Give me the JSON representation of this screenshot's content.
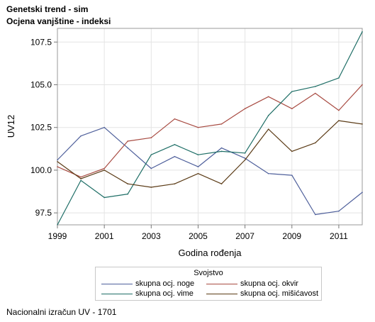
{
  "title_line1": "Genetski trend - sim",
  "title_line2": "Ocjena vanjštine - indeksi",
  "footnote": "Nacionalni izračun UV - 1701",
  "chart_data": {
    "type": "line",
    "title": "Genetski trend - sim",
    "subtitle": "Ocjena vanjštine - indeksi",
    "xlabel": "Godina rođenja",
    "ylabel": "UV12",
    "x": [
      1999,
      2000,
      2001,
      2002,
      2003,
      2004,
      2005,
      2006,
      2007,
      2008,
      2009,
      2010,
      2011,
      2012
    ],
    "xlim": [
      1999,
      2012
    ],
    "ylim": [
      96.8,
      108.3
    ],
    "xticks": [
      "1999",
      "2001",
      "2003",
      "2005",
      "2007",
      "2009",
      "2011"
    ],
    "yticks": [
      "97.5",
      "100.0",
      "102.5",
      "105.0",
      "107.5"
    ],
    "grid": true,
    "legend_title": "Svojstvo",
    "legend_position": "bottom",
    "series": [
      {
        "name": "skupna ocj. noge",
        "color": "#4e5f9b",
        "values": [
          100.6,
          102.0,
          102.5,
          101.3,
          100.1,
          100.8,
          100.2,
          101.3,
          100.7,
          99.8,
          99.7,
          97.4,
          97.6,
          98.7
        ]
      },
      {
        "name": "skupna ocj. okvir",
        "color": "#a84b42",
        "values": [
          100.2,
          99.6,
          100.1,
          101.7,
          101.9,
          103.0,
          102.5,
          102.7,
          103.6,
          104.3,
          103.6,
          104.5,
          103.5,
          105.0
        ]
      },
      {
        "name": "skupna ocj. vime",
        "color": "#1e6e66",
        "values": [
          96.8,
          99.4,
          98.4,
          98.6,
          100.9,
          101.5,
          100.9,
          101.1,
          101.0,
          103.2,
          104.6,
          104.9,
          105.4,
          108.1
        ]
      },
      {
        "name": "skupna ocj. mišićavost",
        "color": "#5b3b16",
        "values": [
          100.5,
          99.5,
          100.0,
          99.2,
          99.0,
          99.2,
          99.8,
          99.2,
          100.6,
          102.4,
          101.1,
          101.6,
          102.9,
          102.7
        ]
      }
    ]
  }
}
